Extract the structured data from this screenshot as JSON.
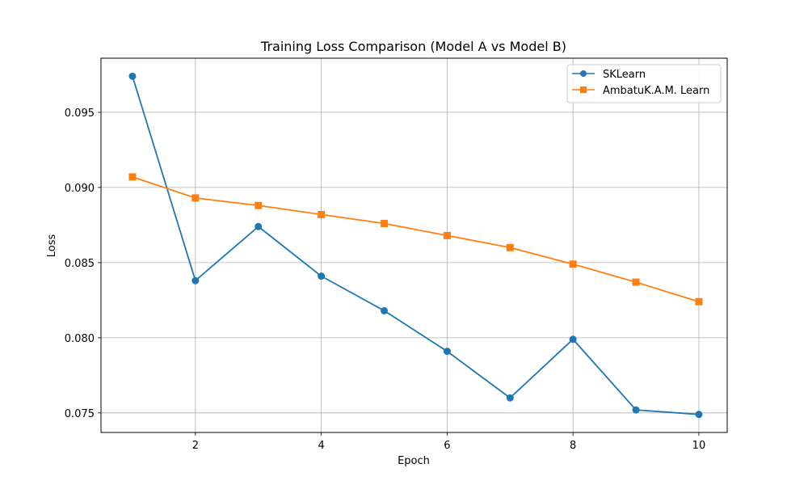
{
  "chart_data": {
    "type": "line",
    "title": "Training Loss Comparison (Model A vs Model B)",
    "xlabel": "Epoch",
    "ylabel": "Loss",
    "x": [
      1,
      2,
      3,
      4,
      5,
      6,
      7,
      8,
      9,
      10
    ],
    "xlim": [
      0.5,
      10.45
    ],
    "ylim": [
      0.0737,
      0.0986
    ],
    "xticks": [
      2,
      4,
      6,
      8,
      10
    ],
    "yticks": [
      0.075,
      0.08,
      0.085,
      0.09,
      0.095
    ],
    "ytick_labels": [
      "0.075",
      "0.080",
      "0.085",
      "0.090",
      "0.095"
    ],
    "grid": true,
    "legend_position": "top-right",
    "series": [
      {
        "name": "SKLearn",
        "color": "#1f77b4",
        "marker": "circle",
        "values": [
          0.0974,
          0.0838,
          0.0874,
          0.0841,
          0.0818,
          0.0791,
          0.076,
          0.0799,
          0.0752,
          0.0749
        ]
      },
      {
        "name": "AmbatuK.A.M. Learn",
        "color": "#ff7f0e",
        "marker": "square",
        "values": [
          0.0907,
          0.0893,
          0.0888,
          0.0882,
          0.0876,
          0.0868,
          0.086,
          0.0849,
          0.0837,
          0.0824
        ]
      }
    ]
  }
}
